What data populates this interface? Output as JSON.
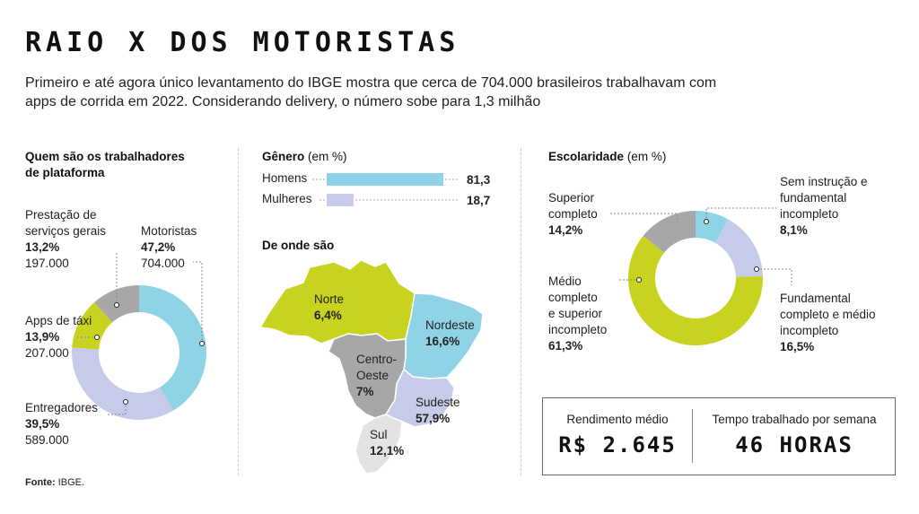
{
  "title": "RAIO X DOS MOTORISTAS",
  "subtitle": "Primeiro e até agora único levantamento do IBGE mostra que cerca de 704.000 brasileiros trabalhavam com apps de corrida em 2022. Considerando delivery, o número sobe para 1,3 milhão",
  "colors": {
    "blue": "#8fd3e6",
    "lavender": "#c6cbe9",
    "lime": "#c7d31f",
    "gray": "#a7a7a7"
  },
  "chart_data": [
    {
      "type": "pie",
      "title": "Quem são os trabalhadores de plataforma",
      "slices": [
        {
          "label": "Motoristas",
          "value": 47.2,
          "value_label": "47,2%",
          "count": "704.000",
          "color": "#8fd3e6"
        },
        {
          "label": "Entregadores",
          "value": 39.5,
          "value_label": "39,5%",
          "count": "589.000",
          "color": "#c6cbe9"
        },
        {
          "label": "Apps de táxi",
          "value": 13.9,
          "value_label": "13,9%",
          "count": "207.000",
          "color": "#c7d31f"
        },
        {
          "label": "Prestação de serviços gerais",
          "value": 13.2,
          "value_label": "13,2%",
          "count": "197.000",
          "color": "#a7a7a7"
        }
      ]
    },
    {
      "type": "bar",
      "title": "Gênero",
      "unit": "(em %)",
      "categories": [
        "Homens",
        "Mulheres"
      ],
      "values": [
        81.3,
        18.7
      ],
      "value_labels": [
        "81,3",
        "18,7"
      ],
      "colors": [
        "#8fd3e6",
        "#c6cbe9"
      ]
    },
    {
      "type": "map",
      "title": "De onde são",
      "regions": [
        {
          "name": "Norte",
          "value": 6.4,
          "value_label": "6,4%",
          "color": "#c7d31f"
        },
        {
          "name": "Nordeste",
          "value": 16.6,
          "value_label": "16,6%",
          "color": "#8fd3e6"
        },
        {
          "name": "Centro-Oeste",
          "name_lines": [
            "Centro-",
            "Oeste"
          ],
          "value": 7,
          "value_label": "7%",
          "color": "#a7a7a7"
        },
        {
          "name": "Sudeste",
          "value": 57.9,
          "value_label": "57,9%",
          "color": "#c6cbe9"
        },
        {
          "name": "Sul",
          "value": 12.1,
          "value_label": "12,1%",
          "color": "#e3e3e3"
        }
      ]
    },
    {
      "type": "pie",
      "title": "Escolaridade",
      "unit": "(em %)",
      "slices": [
        {
          "label": "Sem instrução e fundamental incompleto",
          "label_lines": [
            "Sem instrução e",
            "fundamental",
            "incompleto"
          ],
          "value": 8.1,
          "value_label": "8,1%",
          "color": "#8fd3e6"
        },
        {
          "label": "Fundamental completo e médio incompleto",
          "label_lines": [
            "Fundamental",
            "completo e médio",
            "incompleto"
          ],
          "value": 16.5,
          "value_label": "16,5%",
          "color": "#c6cbe9"
        },
        {
          "label": "Médio completo e superior incompleto",
          "label_lines": [
            "Médio",
            "completo",
            "e superior",
            "incompleto"
          ],
          "value": 61.3,
          "value_label": "61,3%",
          "color": "#c7d31f"
        },
        {
          "label": "Superior completo",
          "label_lines": [
            "Superior",
            "completo"
          ],
          "value": 14.2,
          "value_label": "14,2%",
          "color": "#a7a7a7"
        }
      ]
    }
  ],
  "workers": {
    "head_line1": "Quem são os trabalhadores",
    "head_line2": "de plataforma",
    "servicos_line1": "Prestação de",
    "servicos_line2": "serviços gerais"
  },
  "gender": {
    "head": "Gênero",
    "unit": "(em %)"
  },
  "map_head": "De onde são",
  "education": {
    "head": "Escolaridade",
    "unit": "(em %)"
  },
  "stats": {
    "income_label": "Rendimento médio",
    "income_value": "R$ 2.645",
    "hours_label": "Tempo trabalhado por semana",
    "hours_value": "46 HORAS"
  },
  "source": {
    "label": "Fonte:",
    "value": "IBGE."
  }
}
